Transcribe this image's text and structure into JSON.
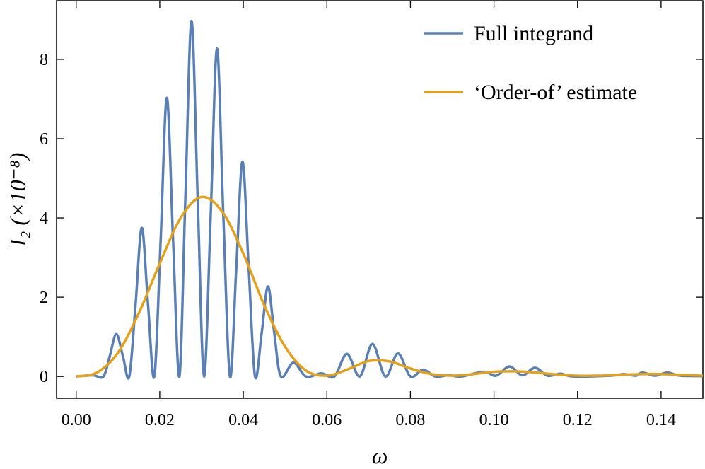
{
  "chart_data": {
    "type": "line",
    "xlabel": "ω",
    "ylabel": "I₂ (×10⁻⁸)",
    "xlim": [
      -0.0047,
      0.15
    ],
    "ylim": [
      -0.55,
      9.48
    ],
    "xticks": [
      {
        "value": 0,
        "label": "0.00"
      },
      {
        "value": 0.02,
        "label": "0.02"
      },
      {
        "value": 0.04,
        "label": "0.04"
      },
      {
        "value": 0.06,
        "label": "0.06"
      },
      {
        "value": 0.08,
        "label": "0.08"
      },
      {
        "value": 0.1,
        "label": "0.10"
      },
      {
        "value": 0.12,
        "label": "0.12"
      },
      {
        "value": 0.14,
        "label": "0.14"
      }
    ],
    "yticks": [
      0,
      2,
      4,
      6,
      8
    ],
    "legend": "upper right",
    "series": [
      {
        "name": "Full integrand",
        "color": "#5a7fb5",
        "x": [
          0,
          0.004,
          0.0065,
          0.008,
          0.0096,
          0.0112,
          0.0127,
          0.0142,
          0.0157,
          0.0172,
          0.0187,
          0.0202,
          0.0217,
          0.0232,
          0.0247,
          0.0261,
          0.0276,
          0.0291,
          0.0306,
          0.0322,
          0.0337,
          0.0352,
          0.0368,
          0.0383,
          0.0398,
          0.0413,
          0.0428,
          0.0444,
          0.0459,
          0.0474,
          0.049,
          0.052,
          0.055,
          0.0587,
          0.0618,
          0.0648,
          0.0679,
          0.0709,
          0.074,
          0.077,
          0.08,
          0.083,
          0.086,
          0.0892,
          0.0922,
          0.0975,
          0.1005,
          0.1037,
          0.1068,
          0.1098,
          0.1128,
          0.116,
          0.119,
          0.128,
          0.131,
          0.134,
          0.1355,
          0.1385,
          0.1415,
          0.1445,
          0.15
        ],
        "values": [
          0,
          0.03,
          0,
          0.5,
          1.07,
          0.5,
          0,
          1.8,
          3.75,
          1.8,
          0,
          3.4,
          7.03,
          3.4,
          0,
          4.4,
          8.97,
          4.4,
          0,
          4.1,
          8.27,
          4.1,
          0,
          2.7,
          5.42,
          2.7,
          0,
          1.1,
          2.27,
          1.1,
          0,
          0.35,
          0,
          0.08,
          0,
          0.57,
          0,
          0.82,
          0,
          0.58,
          0,
          0.17,
          0,
          0.03,
          0,
          0.12,
          0.02,
          0.25,
          0.03,
          0.22,
          0.02,
          0.07,
          0,
          0.02,
          0.06,
          0.02,
          0.1,
          0.02,
          0.1,
          0.02,
          0.01
        ]
      },
      {
        "name": "‘Order-of’ estimate",
        "color": "#e3a11c",
        "x": [
          0,
          0.005,
          0.01,
          0.015,
          0.02,
          0.025,
          0.03,
          0.035,
          0.04,
          0.045,
          0.05,
          0.055,
          0.06,
          0.065,
          0.07,
          0.075,
          0.08,
          0.085,
          0.09,
          0.095,
          0.1,
          0.105,
          0.11,
          0.115,
          0.12,
          0.125,
          0.13,
          0.135,
          0.14,
          0.145,
          0.15
        ],
        "values": [
          0,
          0.1,
          0.6,
          1.6,
          2.85,
          4.0,
          4.53,
          4.15,
          3.1,
          1.8,
          0.75,
          0.15,
          0.02,
          0.18,
          0.39,
          0.38,
          0.2,
          0.06,
          0.02,
          0.06,
          0.12,
          0.13,
          0.1,
          0.05,
          0.02,
          0.02,
          0.04,
          0.06,
          0.06,
          0.04,
          0.02
        ]
      }
    ]
  }
}
